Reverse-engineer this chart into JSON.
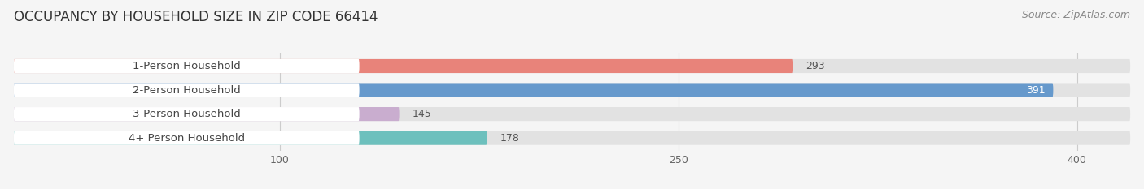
{
  "title": "OCCUPANCY BY HOUSEHOLD SIZE IN ZIP CODE 66414",
  "source": "Source: ZipAtlas.com",
  "categories": [
    "1-Person Household",
    "2-Person Household",
    "3-Person Household",
    "4+ Person Household"
  ],
  "values": [
    293,
    391,
    145,
    178
  ],
  "bar_colors": [
    "#E8837A",
    "#6699CC",
    "#C9ADCF",
    "#6DC0BD"
  ],
  "value_inside": [
    false,
    true,
    false,
    false
  ],
  "xlim_data": [
    0,
    420
  ],
  "x_max_display": 410,
  "xticks": [
    100,
    250,
    400
  ],
  "background_color": "#f5f5f5",
  "bar_background_color": "#e2e2e2",
  "white_pill_color": "#ffffff",
  "title_fontsize": 12,
  "source_fontsize": 9,
  "label_fontsize": 9.5,
  "value_fontsize": 9
}
